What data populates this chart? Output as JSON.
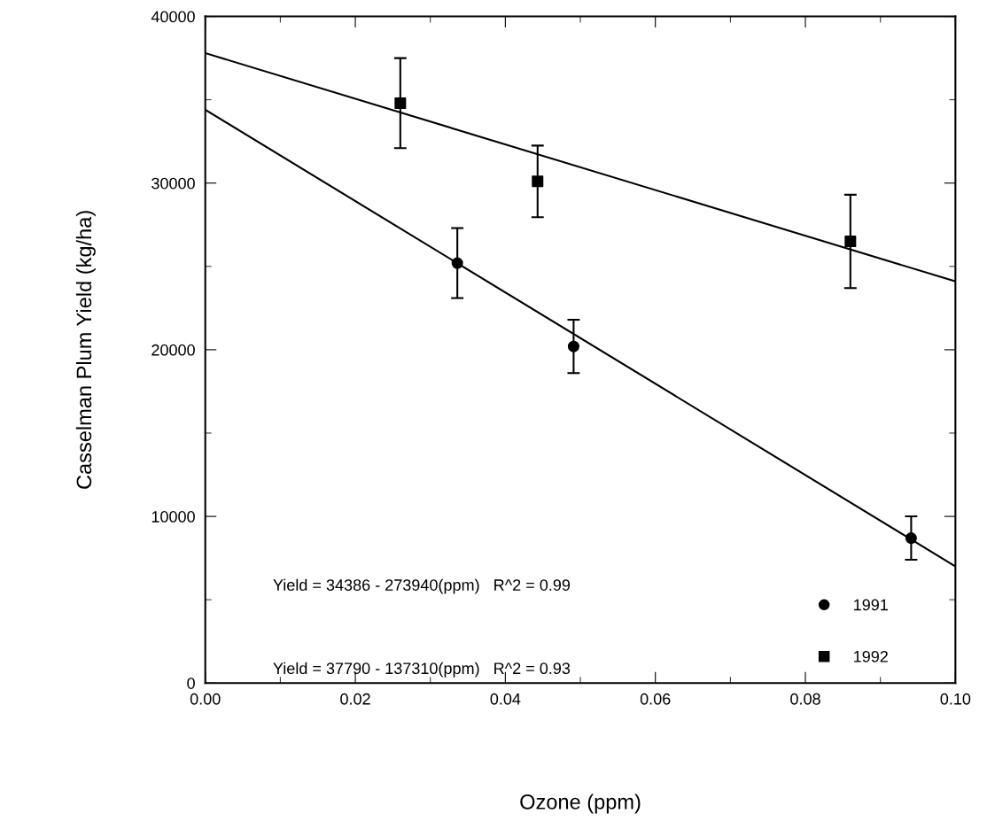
{
  "chart_data": {
    "type": "scatter",
    "xlabel": "Ozone (ppm)",
    "ylabel": "Casselman Plum Yield (kg/ha)",
    "xlim": [
      0,
      0.1
    ],
    "ylim": [
      0,
      40000
    ],
    "xticks": [
      {
        "value": 0,
        "label": "0.00"
      },
      {
        "value": 0.02,
        "label": "0.02"
      },
      {
        "value": 0.04,
        "label": "0.04"
      },
      {
        "value": 0.06,
        "label": "0.06"
      },
      {
        "value": 0.08,
        "label": "0.08"
      },
      {
        "value": 0.1,
        "label": "0.10"
      }
    ],
    "yticks": [
      0,
      10000,
      20000,
      30000,
      40000
    ],
    "grid": false,
    "legend": "bottom right",
    "annotations": [
      "Yield = 34386 - 273940(ppm)   R^2 = 0.99",
      "Yield = 37790 - 137310(ppm)   R^2 = 0.93"
    ],
    "series": [
      {
        "name": "1991",
        "marker": "circle",
        "color": "#000000",
        "x": [
          0.0336,
          0.0491,
          0.0941
        ],
        "values": [
          25200,
          20200,
          8700
        ],
        "errors": [
          2100,
          1600,
          1300
        ]
      },
      {
        "name": "1992",
        "marker": "square",
        "color": "#000000",
        "x": [
          0.026,
          0.0443,
          0.086
        ],
        "values": [
          34800,
          30100,
          26500
        ],
        "errors": [
          2700,
          2150,
          2800
        ]
      },
      {
        "type": "line",
        "color": "#000000",
        "x": [
          0,
          0.1
        ],
        "values": [
          34400,
          7000
        ]
      },
      {
        "type": "line",
        "color": "#000000",
        "x": [
          0,
          0.1
        ],
        "values": [
          37800,
          24100
        ]
      }
    ]
  }
}
